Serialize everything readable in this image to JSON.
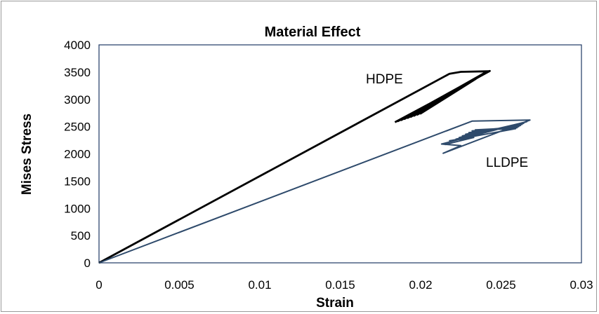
{
  "chart_data": {
    "type": "line",
    "title": "Material Effect",
    "xlabel": "Strain",
    "ylabel": "Mises  Stress",
    "xlim": [
      0,
      0.03
    ],
    "ylim": [
      0,
      4000
    ],
    "x_ticks": [
      "0",
      "0.005",
      "0.01",
      "0.015",
      "0.02",
      "0.025",
      "0.03"
    ],
    "y_ticks": [
      "0",
      "500",
      "1000",
      "1500",
      "2000",
      "2500",
      "3000",
      "3500",
      "4000"
    ],
    "grid": false,
    "legend": "none",
    "series": [
      {
        "name": "HDPE",
        "color": "#000000",
        "points": [
          [
            0,
            0
          ],
          [
            0.0218,
            3470
          ],
          [
            0.0225,
            3505
          ],
          [
            0.0242,
            3515
          ],
          [
            0.0243,
            3520
          ],
          [
            0.0186,
            2600
          ],
          [
            0.0241,
            3500
          ],
          [
            0.0188,
            2620
          ],
          [
            0.024,
            3490
          ],
          [
            0.019,
            2640
          ],
          [
            0.0239,
            3470
          ],
          [
            0.0192,
            2660
          ],
          [
            0.0238,
            3450
          ],
          [
            0.0194,
            2680
          ],
          [
            0.0237,
            3430
          ],
          [
            0.0196,
            2700
          ],
          [
            0.0236,
            3410
          ],
          [
            0.0198,
            2720
          ],
          [
            0.0235,
            3390
          ],
          [
            0.02,
            2740
          ],
          [
            0.0234,
            3370
          ],
          [
            0.0184,
            2580
          ]
        ]
      },
      {
        "name": "LLDPE",
        "color": "#2e4a6b",
        "points": [
          [
            0,
            0
          ],
          [
            0.0232,
            2600
          ],
          [
            0.0268,
            2620
          ],
          [
            0.0214,
            2010
          ],
          [
            0.0225,
            2150
          ],
          [
            0.0213,
            2180
          ],
          [
            0.0266,
            2590
          ],
          [
            0.0222,
            2270
          ],
          [
            0.0265,
            2580
          ],
          [
            0.0224,
            2300
          ],
          [
            0.0264,
            2560
          ],
          [
            0.0226,
            2330
          ],
          [
            0.0263,
            2540
          ],
          [
            0.0228,
            2360
          ],
          [
            0.0262,
            2520
          ],
          [
            0.023,
            2390
          ],
          [
            0.0261,
            2500
          ],
          [
            0.0232,
            2420
          ],
          [
            0.026,
            2480
          ],
          [
            0.0234,
            2440
          ],
          [
            0.0259,
            2460
          ],
          [
            0.0218,
            2240
          ],
          [
            0.0233,
            2300
          ],
          [
            0.0215,
            2170
          ]
        ]
      }
    ]
  }
}
